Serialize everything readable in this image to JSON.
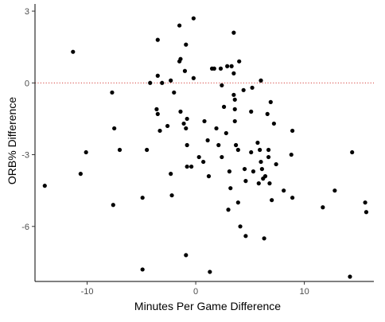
{
  "chart_data": {
    "type": "scatter",
    "title": "",
    "xlabel": "Minutes Per Game Difference",
    "ylabel": "ORB% Difference",
    "xlim": [
      -14.8,
      16.4
    ],
    "ylim": [
      -8.3,
      3.3
    ],
    "xticks": [
      -10,
      0,
      10
    ],
    "xtick_labels": [
      "-10",
      "0",
      "10"
    ],
    "yticks": [
      3,
      0,
      -3,
      -6
    ],
    "ytick_labels": [
      "3",
      "0",
      "-3",
      "-6"
    ],
    "grid": false,
    "legend": "none",
    "reference_line": {
      "y": 0,
      "color": "#d9534f",
      "style": "dotted"
    },
    "point_color": "#000000",
    "series": [
      {
        "points": [
          [
            -13.9,
            -4.3
          ],
          [
            -11.3,
            1.3
          ],
          [
            -10.1,
            -2.9
          ],
          [
            -10.6,
            -3.8
          ],
          [
            -7.7,
            -0.4
          ],
          [
            -7.5,
            -1.9
          ],
          [
            -7.6,
            -5.1
          ],
          [
            -7.0,
            -2.8
          ],
          [
            -4.9,
            -4.8
          ],
          [
            -4.5,
            -2.8
          ],
          [
            -4.2,
            0.0
          ],
          [
            -3.5,
            1.8
          ],
          [
            -3.6,
            -1.1
          ],
          [
            -3.5,
            -1.3
          ],
          [
            -3.5,
            0.3
          ],
          [
            -3.1,
            0.0
          ],
          [
            -3.3,
            -2.0
          ],
          [
            -2.6,
            -1.8
          ],
          [
            -2.3,
            0.1
          ],
          [
            -2.3,
            -3.8
          ],
          [
            -2.2,
            -4.7
          ],
          [
            -2.0,
            -0.4
          ],
          [
            -1.5,
            2.4
          ],
          [
            -1.4,
            -1.2
          ],
          [
            -1.5,
            0.9
          ],
          [
            -1.4,
            1.0
          ],
          [
            -1.1,
            -1.7
          ],
          [
            -1.0,
            0.5
          ],
          [
            -0.9,
            1.6
          ],
          [
            -0.8,
            -1.5
          ],
          [
            -0.9,
            -1.9
          ],
          [
            -0.8,
            -2.6
          ],
          [
            -0.8,
            -3.5
          ],
          [
            -0.4,
            -3.5
          ],
          [
            -0.2,
            2.7
          ],
          [
            -0.2,
            0.2
          ],
          [
            0.3,
            -3.1
          ],
          [
            0.7,
            -3.3
          ],
          [
            0.8,
            -1.6
          ],
          [
            1.1,
            -2.4
          ],
          [
            1.2,
            -3.9
          ],
          [
            1.7,
            0.6
          ],
          [
            1.5,
            0.6
          ],
          [
            1.9,
            -1.9
          ],
          [
            2.1,
            -2.6
          ],
          [
            2.3,
            0.6
          ],
          [
            2.4,
            -0.1
          ],
          [
            2.4,
            -3.1
          ],
          [
            2.6,
            -1.0
          ],
          [
            2.8,
            -2.1
          ],
          [
            2.9,
            0.7
          ],
          [
            3.0,
            -5.3
          ],
          [
            3.1,
            -3.7
          ],
          [
            3.2,
            -4.4
          ],
          [
            3.3,
            0.7
          ],
          [
            3.5,
            0.4
          ],
          [
            3.5,
            2.1
          ],
          [
            3.5,
            -0.5
          ],
          [
            3.6,
            -0.7
          ],
          [
            3.6,
            -1.1
          ],
          [
            3.6,
            -1.6
          ],
          [
            3.7,
            -2.6
          ],
          [
            3.9,
            -2.8
          ],
          [
            3.9,
            -5.0
          ],
          [
            4.1,
            -6.0
          ],
          [
            4.0,
            0.9
          ],
          [
            4.4,
            -0.3
          ],
          [
            4.5,
            -3.6
          ],
          [
            4.6,
            -4.1
          ],
          [
            4.6,
            -6.4
          ],
          [
            5.1,
            -2.9
          ],
          [
            5.1,
            -1.2
          ],
          [
            5.2,
            -0.2
          ],
          [
            5.3,
            -3.7
          ],
          [
            5.7,
            -2.5
          ],
          [
            5.8,
            -4.2
          ],
          [
            5.9,
            -2.8
          ],
          [
            6.0,
            0.1
          ],
          [
            6.0,
            -3.3
          ],
          [
            6.1,
            -3.6
          ],
          [
            6.2,
            -4.0
          ],
          [
            6.4,
            -3.9
          ],
          [
            6.3,
            -6.5
          ],
          [
            6.6,
            -1.3
          ],
          [
            6.7,
            -2.8
          ],
          [
            6.7,
            -3.1
          ],
          [
            6.8,
            -4.2
          ],
          [
            6.9,
            -0.8
          ],
          [
            7.0,
            -4.9
          ],
          [
            7.2,
            -1.7
          ],
          [
            7.4,
            -3.4
          ],
          [
            8.1,
            -4.5
          ],
          [
            8.9,
            -2.0
          ],
          [
            8.8,
            -3.0
          ],
          [
            8.9,
            -4.8
          ],
          [
            11.7,
            -5.2
          ],
          [
            12.8,
            -4.5
          ],
          [
            14.4,
            -2.9
          ],
          [
            15.6,
            -5.0
          ],
          [
            15.7,
            -5.4
          ],
          [
            -4.9,
            -7.8
          ],
          [
            -0.9,
            -7.2
          ],
          [
            1.3,
            -7.9
          ],
          [
            14.2,
            -8.1
          ]
        ]
      }
    ]
  }
}
